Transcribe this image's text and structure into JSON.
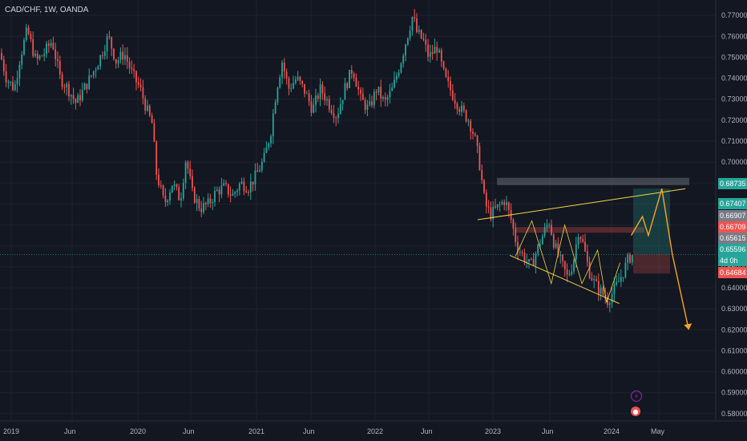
{
  "header": {
    "title": "CAD/CHF, 1W, OANDA"
  },
  "colors": {
    "background": "#131722",
    "up": "#26a69a",
    "down": "#ef5350",
    "grid": "#1e222d",
    "axis_text": "#b2b5be",
    "pattern_lines": "#f5d742",
    "projection": "#f5a623"
  },
  "chart_data": {
    "type": "candlestick",
    "symbol": "CAD/CHF",
    "interval": "1W",
    "source": "OANDA",
    "y_ticks": [
      "0.77000",
      "0.76000",
      "0.75000",
      "0.74000",
      "0.73000",
      "0.72000",
      "0.71000",
      "0.70000",
      "0.69000",
      "0.68000",
      "0.67000",
      "0.66000",
      "0.65000",
      "0.64000",
      "0.63000",
      "0.62000",
      "0.61000",
      "0.60000",
      "0.59000",
      "0.58000"
    ],
    "ylim": [
      0.5765,
      0.7735
    ],
    "x_ticks": [
      "2019",
      "Jun",
      "2020",
      "Jun",
      "2021",
      "Jun",
      "2022",
      "Jun",
      "2023",
      "Jun",
      "2024",
      "May"
    ],
    "price_labels": [
      {
        "text": "0.68735",
        "color": "#26a69a"
      },
      {
        "text": "0.67407",
        "color": "#26a69a"
      },
      {
        "text": "0.66907",
        "color": "#787b86"
      },
      {
        "text": "0.66709",
        "color": "#ef5350"
      },
      {
        "text": "0.65615",
        "color": "#787b86"
      },
      {
        "text": "0.65596",
        "color": "#26a69a"
      },
      {
        "text": "4d 0h",
        "color": "#26a69a"
      },
      {
        "text": "0.64684",
        "color": "#ef5350"
      }
    ],
    "series_anchors": [
      [
        0,
        0.752
      ],
      [
        8,
        0.74
      ],
      [
        18,
        0.735
      ],
      [
        25,
        0.75
      ],
      [
        34,
        0.763
      ],
      [
        45,
        0.748
      ],
      [
        55,
        0.752
      ],
      [
        65,
        0.758
      ],
      [
        75,
        0.74
      ],
      [
        85,
        0.735
      ],
      [
        95,
        0.728
      ],
      [
        105,
        0.735
      ],
      [
        115,
        0.742
      ],
      [
        125,
        0.75
      ],
      [
        135,
        0.76
      ],
      [
        145,
        0.748
      ],
      [
        155,
        0.752
      ],
      [
        165,
        0.742
      ],
      [
        175,
        0.735
      ],
      [
        183,
        0.725
      ],
      [
        190,
        0.718
      ],
      [
        195,
        0.695
      ],
      [
        205,
        0.68
      ],
      [
        215,
        0.69
      ],
      [
        225,
        0.682
      ],
      [
        232,
        0.702
      ],
      [
        240,
        0.685
      ],
      [
        250,
        0.678
      ],
      [
        260,
        0.68
      ],
      [
        270,
        0.686
      ],
      [
        280,
        0.688
      ],
      [
        290,
        0.684
      ],
      [
        300,
        0.69
      ],
      [
        310,
        0.688
      ],
      [
        320,
        0.694
      ],
      [
        330,
        0.702
      ],
      [
        338,
        0.715
      ],
      [
        345,
        0.735
      ],
      [
        352,
        0.748
      ],
      [
        360,
        0.735
      ],
      [
        370,
        0.74
      ],
      [
        380,
        0.734
      ],
      [
        390,
        0.725
      ],
      [
        400,
        0.735
      ],
      [
        410,
        0.728
      ],
      [
        420,
        0.722
      ],
      [
        430,
        0.735
      ],
      [
        440,
        0.745
      ],
      [
        450,
        0.73
      ],
      [
        460,
        0.725
      ],
      [
        470,
        0.735
      ],
      [
        480,
        0.728
      ],
      [
        490,
        0.735
      ],
      [
        500,
        0.748
      ],
      [
        508,
        0.76
      ],
      [
        515,
        0.77
      ],
      [
        520,
        0.762
      ],
      [
        528,
        0.758
      ],
      [
        535,
        0.75
      ],
      [
        545,
        0.755
      ],
      [
        555,
        0.74
      ],
      [
        565,
        0.732
      ],
      [
        575,
        0.725
      ],
      [
        585,
        0.72
      ],
      [
        592,
        0.712
      ],
      [
        598,
        0.7
      ],
      [
        605,
        0.68
      ],
      [
        612,
        0.675
      ],
      [
        620,
        0.678
      ],
      [
        630,
        0.682
      ],
      [
        638,
        0.672
      ],
      [
        645,
        0.66
      ],
      [
        655,
        0.654
      ],
      [
        662,
        0.65
      ],
      [
        670,
        0.658
      ],
      [
        678,
        0.666
      ],
      [
        685,
        0.672
      ],
      [
        692,
        0.66
      ],
      [
        700,
        0.652
      ],
      [
        708,
        0.645
      ],
      [
        715,
        0.652
      ],
      [
        722,
        0.668
      ],
      [
        728,
        0.66
      ],
      [
        735,
        0.648
      ],
      [
        742,
        0.642
      ],
      [
        750,
        0.638
      ],
      [
        758,
        0.634
      ],
      [
        765,
        0.638
      ],
      [
        772,
        0.643
      ],
      [
        778,
        0.648
      ],
      [
        784,
        0.654
      ],
      [
        790,
        0.656
      ]
    ],
    "annotations": {
      "triangle_upper": [
        [
          0.6395,
          0.6725
        ],
        [
          0.9175,
          0.6873
        ]
      ],
      "triangle_lower": [
        [
          0.6825,
          0.6555
        ],
        [
          0.829,
          0.6325
        ]
      ],
      "projection_path": [
        [
          0.845,
          0.665
        ],
        [
          0.86,
          0.674
        ],
        [
          0.868,
          0.665
        ],
        [
          0.886,
          0.6873
        ],
        [
          0.9,
          0.656
        ],
        [
          0.922,
          0.62
        ]
      ]
    }
  },
  "icons": {
    "flash": "lightning-icon",
    "event": "flag-icon"
  }
}
